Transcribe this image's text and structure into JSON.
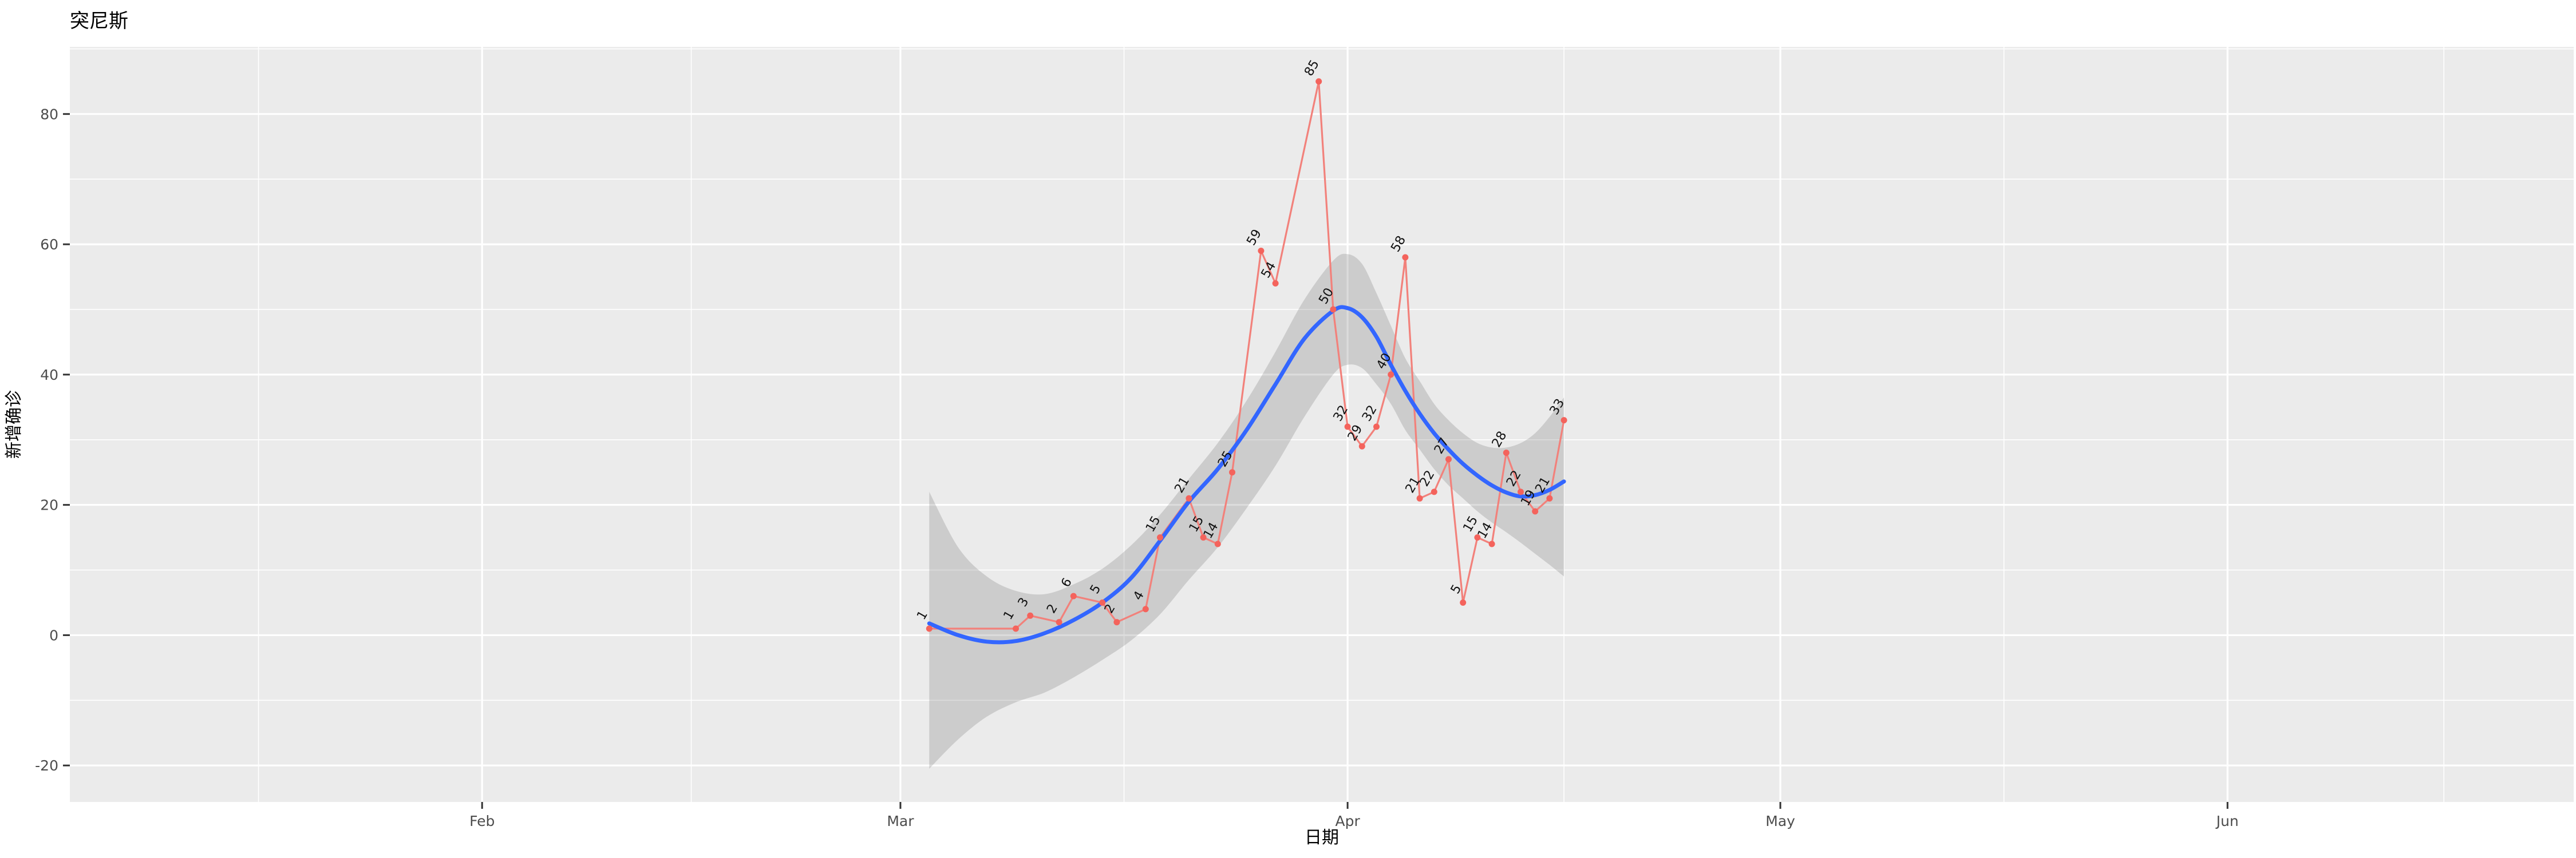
{
  "chart_data": {
    "type": "line",
    "title": "突尼斯",
    "xlabel": "日期",
    "ylabel": "新增确诊",
    "legend": "none",
    "grid": {
      "major": true,
      "minor": true
    },
    "x_axis": {
      "tick_labels": [
        "Feb",
        "Mar",
        "Apr",
        "May",
        "Jun"
      ],
      "tick_days": [
        -29,
        0,
        31,
        61,
        92
      ],
      "minor_days": [
        -44.5,
        -14.5,
        15.5,
        46,
        76.5,
        107
      ],
      "lim_days": [
        -57.58,
        116.0
      ],
      "epoch_note": "days measured from Mar 1"
    },
    "y_axis": {
      "tick_labels": [
        "-20",
        "0",
        "20",
        "40",
        "60",
        "80"
      ],
      "tick_values": [
        -20,
        0,
        20,
        40,
        60,
        80
      ],
      "minor_values": [
        -10,
        10,
        30,
        50,
        70,
        90
      ],
      "lim": [
        -25.6,
        90.3
      ]
    },
    "points": [
      {
        "day": 2,
        "label": "1",
        "value": 1
      },
      {
        "day": 8,
        "label": "1",
        "value": 1
      },
      {
        "day": 9,
        "label": "3",
        "value": 3
      },
      {
        "day": 11,
        "label": "2",
        "value": 2
      },
      {
        "day": 12,
        "label": "6",
        "value": 6
      },
      {
        "day": 14,
        "label": "5",
        "value": 5
      },
      {
        "day": 15,
        "label": "2",
        "value": 2
      },
      {
        "day": 17,
        "label": "4",
        "value": 4
      },
      {
        "day": 18,
        "label": "15",
        "value": 15
      },
      {
        "day": 20,
        "label": "21",
        "value": 21
      },
      {
        "day": 21,
        "label": "15",
        "value": 15
      },
      {
        "day": 22,
        "label": "14",
        "value": 14
      },
      {
        "day": 23,
        "label": "25",
        "value": 25
      },
      {
        "day": 25,
        "label": "59",
        "value": 59
      },
      {
        "day": 26,
        "label": "54",
        "value": 54
      },
      {
        "day": 29,
        "label": "85",
        "value": 85
      },
      {
        "day": 30,
        "label": "50",
        "value": 50
      },
      {
        "day": 31,
        "label": "32",
        "value": 32
      },
      {
        "day": 32,
        "label": "29",
        "value": 29
      },
      {
        "day": 33,
        "label": "32",
        "value": 32
      },
      {
        "day": 34,
        "label": "40",
        "value": 40
      },
      {
        "day": 35,
        "label": "58",
        "value": 58
      },
      {
        "day": 36,
        "label": "21",
        "value": 21
      },
      {
        "day": 37,
        "label": "22",
        "value": 22
      },
      {
        "day": 38,
        "label": "27",
        "value": 27
      },
      {
        "day": 39,
        "label": "5",
        "value": 5
      },
      {
        "day": 40,
        "label": "15",
        "value": 15
      },
      {
        "day": 41,
        "label": "14",
        "value": 14
      },
      {
        "day": 42,
        "label": "28",
        "value": 28
      },
      {
        "day": 43,
        "label": "22",
        "value": 22
      },
      {
        "day": 44,
        "label": "19",
        "value": 19
      },
      {
        "day": 45,
        "label": "21",
        "value": 21
      },
      {
        "day": 46,
        "label": "33",
        "value": 33
      }
    ],
    "smooth_line": [
      [
        2,
        1.8
      ],
      [
        4,
        0.0
      ],
      [
        6,
        -1.0
      ],
      [
        8,
        -0.9
      ],
      [
        10,
        0.3
      ],
      [
        12,
        2.3
      ],
      [
        14,
        5.0
      ],
      [
        16,
        8.8
      ],
      [
        18,
        14.5
      ],
      [
        20,
        20.5
      ],
      [
        22,
        25.5
      ],
      [
        24,
        31.5
      ],
      [
        26,
        38.5
      ],
      [
        28,
        45.5
      ],
      [
        30,
        49.8
      ],
      [
        31,
        50.2
      ],
      [
        32,
        48.8
      ],
      [
        33,
        45.8
      ],
      [
        34,
        41.5
      ],
      [
        35,
        37.5
      ],
      [
        36,
        34.0
      ],
      [
        37,
        31.0
      ],
      [
        38,
        28.5
      ],
      [
        39,
        26.3
      ],
      [
        40,
        24.5
      ],
      [
        41,
        23.0
      ],
      [
        42,
        21.9
      ],
      [
        43,
        21.3
      ],
      [
        44,
        21.5
      ],
      [
        45,
        22.3
      ],
      [
        46,
        23.6
      ]
    ],
    "ribbon": [
      [
        2,
        -20.5,
        22.0
      ],
      [
        4,
        -16.0,
        13.5
      ],
      [
        6,
        -12.5,
        9.0
      ],
      [
        8,
        -10.3,
        6.8
      ],
      [
        10,
        -8.8,
        6.3
      ],
      [
        12,
        -6.5,
        7.8
      ],
      [
        14,
        -3.8,
        10.2
      ],
      [
        16,
        -0.8,
        13.8
      ],
      [
        18,
        3.2,
        18.5
      ],
      [
        20,
        8.5,
        24.0
      ],
      [
        22,
        13.5,
        29.5
      ],
      [
        24,
        19.5,
        36.0
      ],
      [
        26,
        26.0,
        43.5
      ],
      [
        28,
        33.5,
        51.5
      ],
      [
        30,
        40.0,
        57.5
      ],
      [
        31,
        41.5,
        58.5
      ],
      [
        32,
        41.0,
        57.0
      ],
      [
        33,
        38.5,
        52.5
      ],
      [
        34,
        35.5,
        47.5
      ],
      [
        35,
        31.5,
        42.5
      ],
      [
        36,
        28.5,
        39.0
      ],
      [
        37,
        25.5,
        35.5
      ],
      [
        38,
        23.0,
        33.0
      ],
      [
        39,
        21.0,
        31.0
      ],
      [
        40,
        19.0,
        29.5
      ],
      [
        41,
        17.3,
        28.8
      ],
      [
        42,
        15.8,
        28.8
      ],
      [
        43,
        14.2,
        29.5
      ],
      [
        44,
        12.5,
        31.0
      ],
      [
        45,
        10.8,
        33.5
      ],
      [
        46,
        9.0,
        36.5
      ]
    ],
    "colors": {
      "panel_bg": "#EBEBEB",
      "grid": "#FFFFFF",
      "series_line": "#F2817B",
      "point": "#F4635C",
      "point_label": "#111111",
      "smooth": "#3366FF",
      "ribbon": "rgba(105,105,105,0.23)",
      "tick_text": "#4D4D4D",
      "tick_mark": "#333333",
      "axis_title": "#000000",
      "title": "#000000",
      "figure_bg": "#FFFFFF"
    }
  }
}
